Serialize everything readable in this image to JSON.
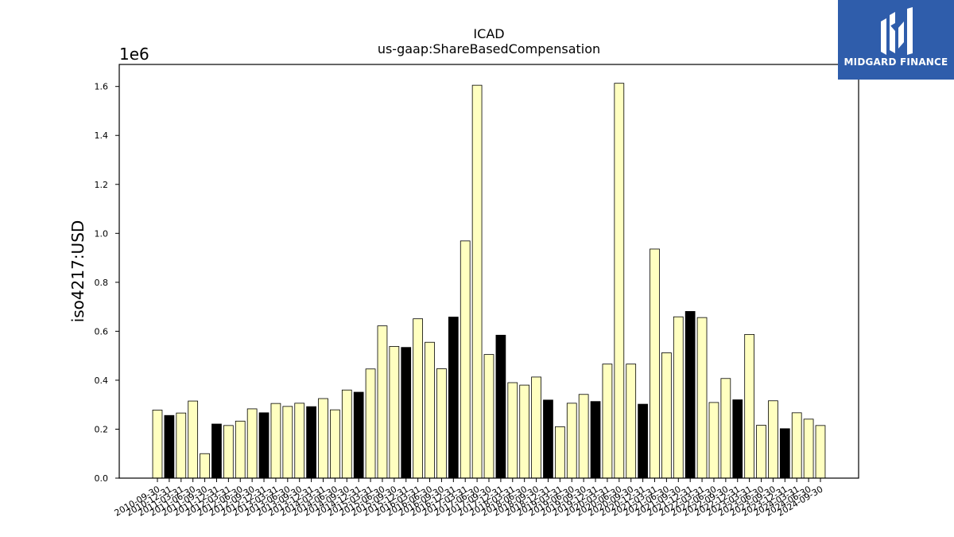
{
  "logo": {
    "text": "MIDGARD FINANCE",
    "background": "#2f5dab"
  },
  "chart_data": {
    "type": "bar",
    "title": "ICAD",
    "subtitle": "us-gaap:ShareBasedCompensation",
    "ylabel": "iso4217:USD",
    "xlabel": "",
    "y_scale_label": "1e6",
    "ylim": [
      0,
      1.69
    ],
    "yticks": [
      "0.0",
      "0.2",
      "0.4",
      "0.6",
      "0.8",
      "1.0",
      "1.2",
      "1.4",
      "1.6"
    ],
    "grid": false,
    "colors": {
      "quarter": "#ffffc0",
      "year_end": "#000000",
      "edge": "#000000"
    },
    "categories": [
      "2010-09-30",
      "2010-12-31",
      "2011-03-31",
      "2011-06-30",
      "2011-09-30",
      "2011-12-31",
      "2012-03-31",
      "2012-06-30",
      "2012-09-30",
      "2012-12-31",
      "2013-03-31",
      "2013-06-30",
      "2013-09-30",
      "2013-12-31",
      "2014-03-31",
      "2014-06-30",
      "2014-09-30",
      "2014-12-31",
      "2015-03-31",
      "2015-06-30",
      "2015-09-30",
      "2015-12-31",
      "2016-03-31",
      "2016-06-30",
      "2016-09-30",
      "2016-12-31",
      "2017-03-31",
      "2017-06-30",
      "2017-09-30",
      "2017-12-31",
      "2018-03-31",
      "2018-06-30",
      "2018-09-30",
      "2018-12-31",
      "2019-03-31",
      "2019-06-30",
      "2019-09-30",
      "2019-12-31",
      "2020-03-31",
      "2020-06-30",
      "2020-09-30",
      "2020-12-31",
      "2021-03-31",
      "2021-06-30",
      "2021-09-30",
      "2021-12-31",
      "2022-03-31",
      "2022-06-30",
      "2022-09-30",
      "2022-12-31",
      "2023-03-31",
      "2023-06-30",
      "2023-09-30",
      "2023-12-31",
      "2024-03-31",
      "2024-06-30",
      "2024-09-30"
    ],
    "values": [
      0.278,
      0.256,
      0.266,
      0.315,
      0.1,
      0.221,
      0.215,
      0.233,
      0.283,
      0.267,
      0.305,
      0.293,
      0.306,
      0.292,
      0.325,
      0.279,
      0.36,
      0.351,
      0.446,
      0.622,
      0.538,
      0.534,
      0.651,
      0.555,
      0.447,
      0.658,
      0.969,
      1.605,
      0.505,
      0.584,
      0.39,
      0.38,
      0.413,
      0.319,
      0.21,
      0.306,
      0.342,
      0.313,
      0.466,
      1.613,
      0.466,
      0.302,
      0.936,
      0.512,
      0.659,
      0.681,
      0.656,
      0.309,
      0.407,
      0.32,
      0.587,
      0.216,
      0.316,
      0.202,
      0.267,
      0.241,
      0.215
    ],
    "year_end": [
      false,
      true,
      false,
      false,
      false,
      true,
      false,
      false,
      false,
      true,
      false,
      false,
      false,
      true,
      false,
      false,
      false,
      true,
      false,
      false,
      false,
      true,
      false,
      false,
      false,
      true,
      false,
      false,
      false,
      true,
      false,
      false,
      false,
      true,
      false,
      false,
      false,
      true,
      false,
      false,
      false,
      true,
      false,
      false,
      false,
      true,
      false,
      false,
      false,
      true,
      false,
      false,
      false,
      true,
      false,
      false,
      false
    ]
  }
}
